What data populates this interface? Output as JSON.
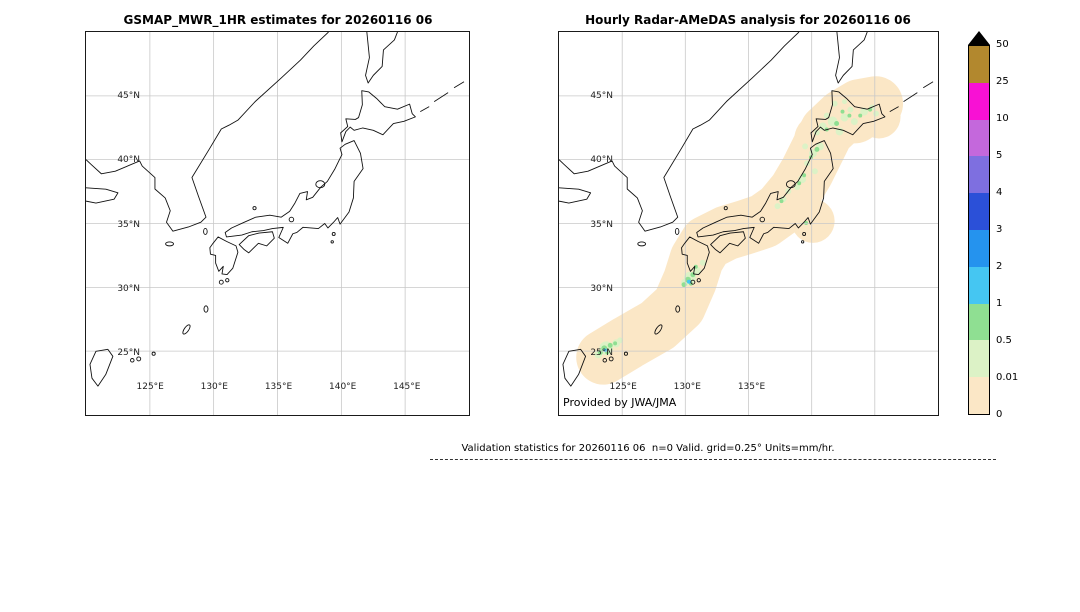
{
  "left_panel": {
    "title": "GSMAP_MWR_1HR estimates for 20260116 06",
    "lat_labels": [
      "45°N",
      "40°N",
      "35°N",
      "30°N",
      "25°N"
    ],
    "lon_labels": [
      "125°E",
      "130°E",
      "135°E",
      "140°E",
      "145°E"
    ]
  },
  "right_panel": {
    "title": "Hourly Radar-AMeDAS analysis for 20260116 06",
    "credit": "Provided by JWA/JMA",
    "lat_labels": [
      "45°N",
      "40°N",
      "35°N",
      "30°N",
      "25°N"
    ],
    "lon_labels": [
      "125°E",
      "130°E",
      "135°E"
    ]
  },
  "colorbar": {
    "tick_labels": [
      "50",
      "25",
      "10",
      "5",
      "4",
      "3",
      "2",
      "1",
      "0.5",
      "0.01",
      "0"
    ],
    "segment_colors_top_to_bottom": [
      "#b2882e",
      "#f811d4",
      "#c468dc",
      "#7e6fe0",
      "#2b50d8",
      "#2593ee",
      "#45c6f2",
      "#8fdf92",
      "#dcf2c6",
      "#fbe7c6"
    ],
    "overflow_marker_color": "#000000"
  },
  "map_colors": {
    "trace": "#fbe7c6",
    "light": "#dcf2c6",
    "moderate": "#8fdf92",
    "heavy": "#45c6f2",
    "coastline": "#111111",
    "gridline": "#c8c8c8"
  },
  "footer": {
    "stats": "Validation statistics for 20260116 06  n=0 Valid. grid=0.25° Units=mm/hr."
  }
}
